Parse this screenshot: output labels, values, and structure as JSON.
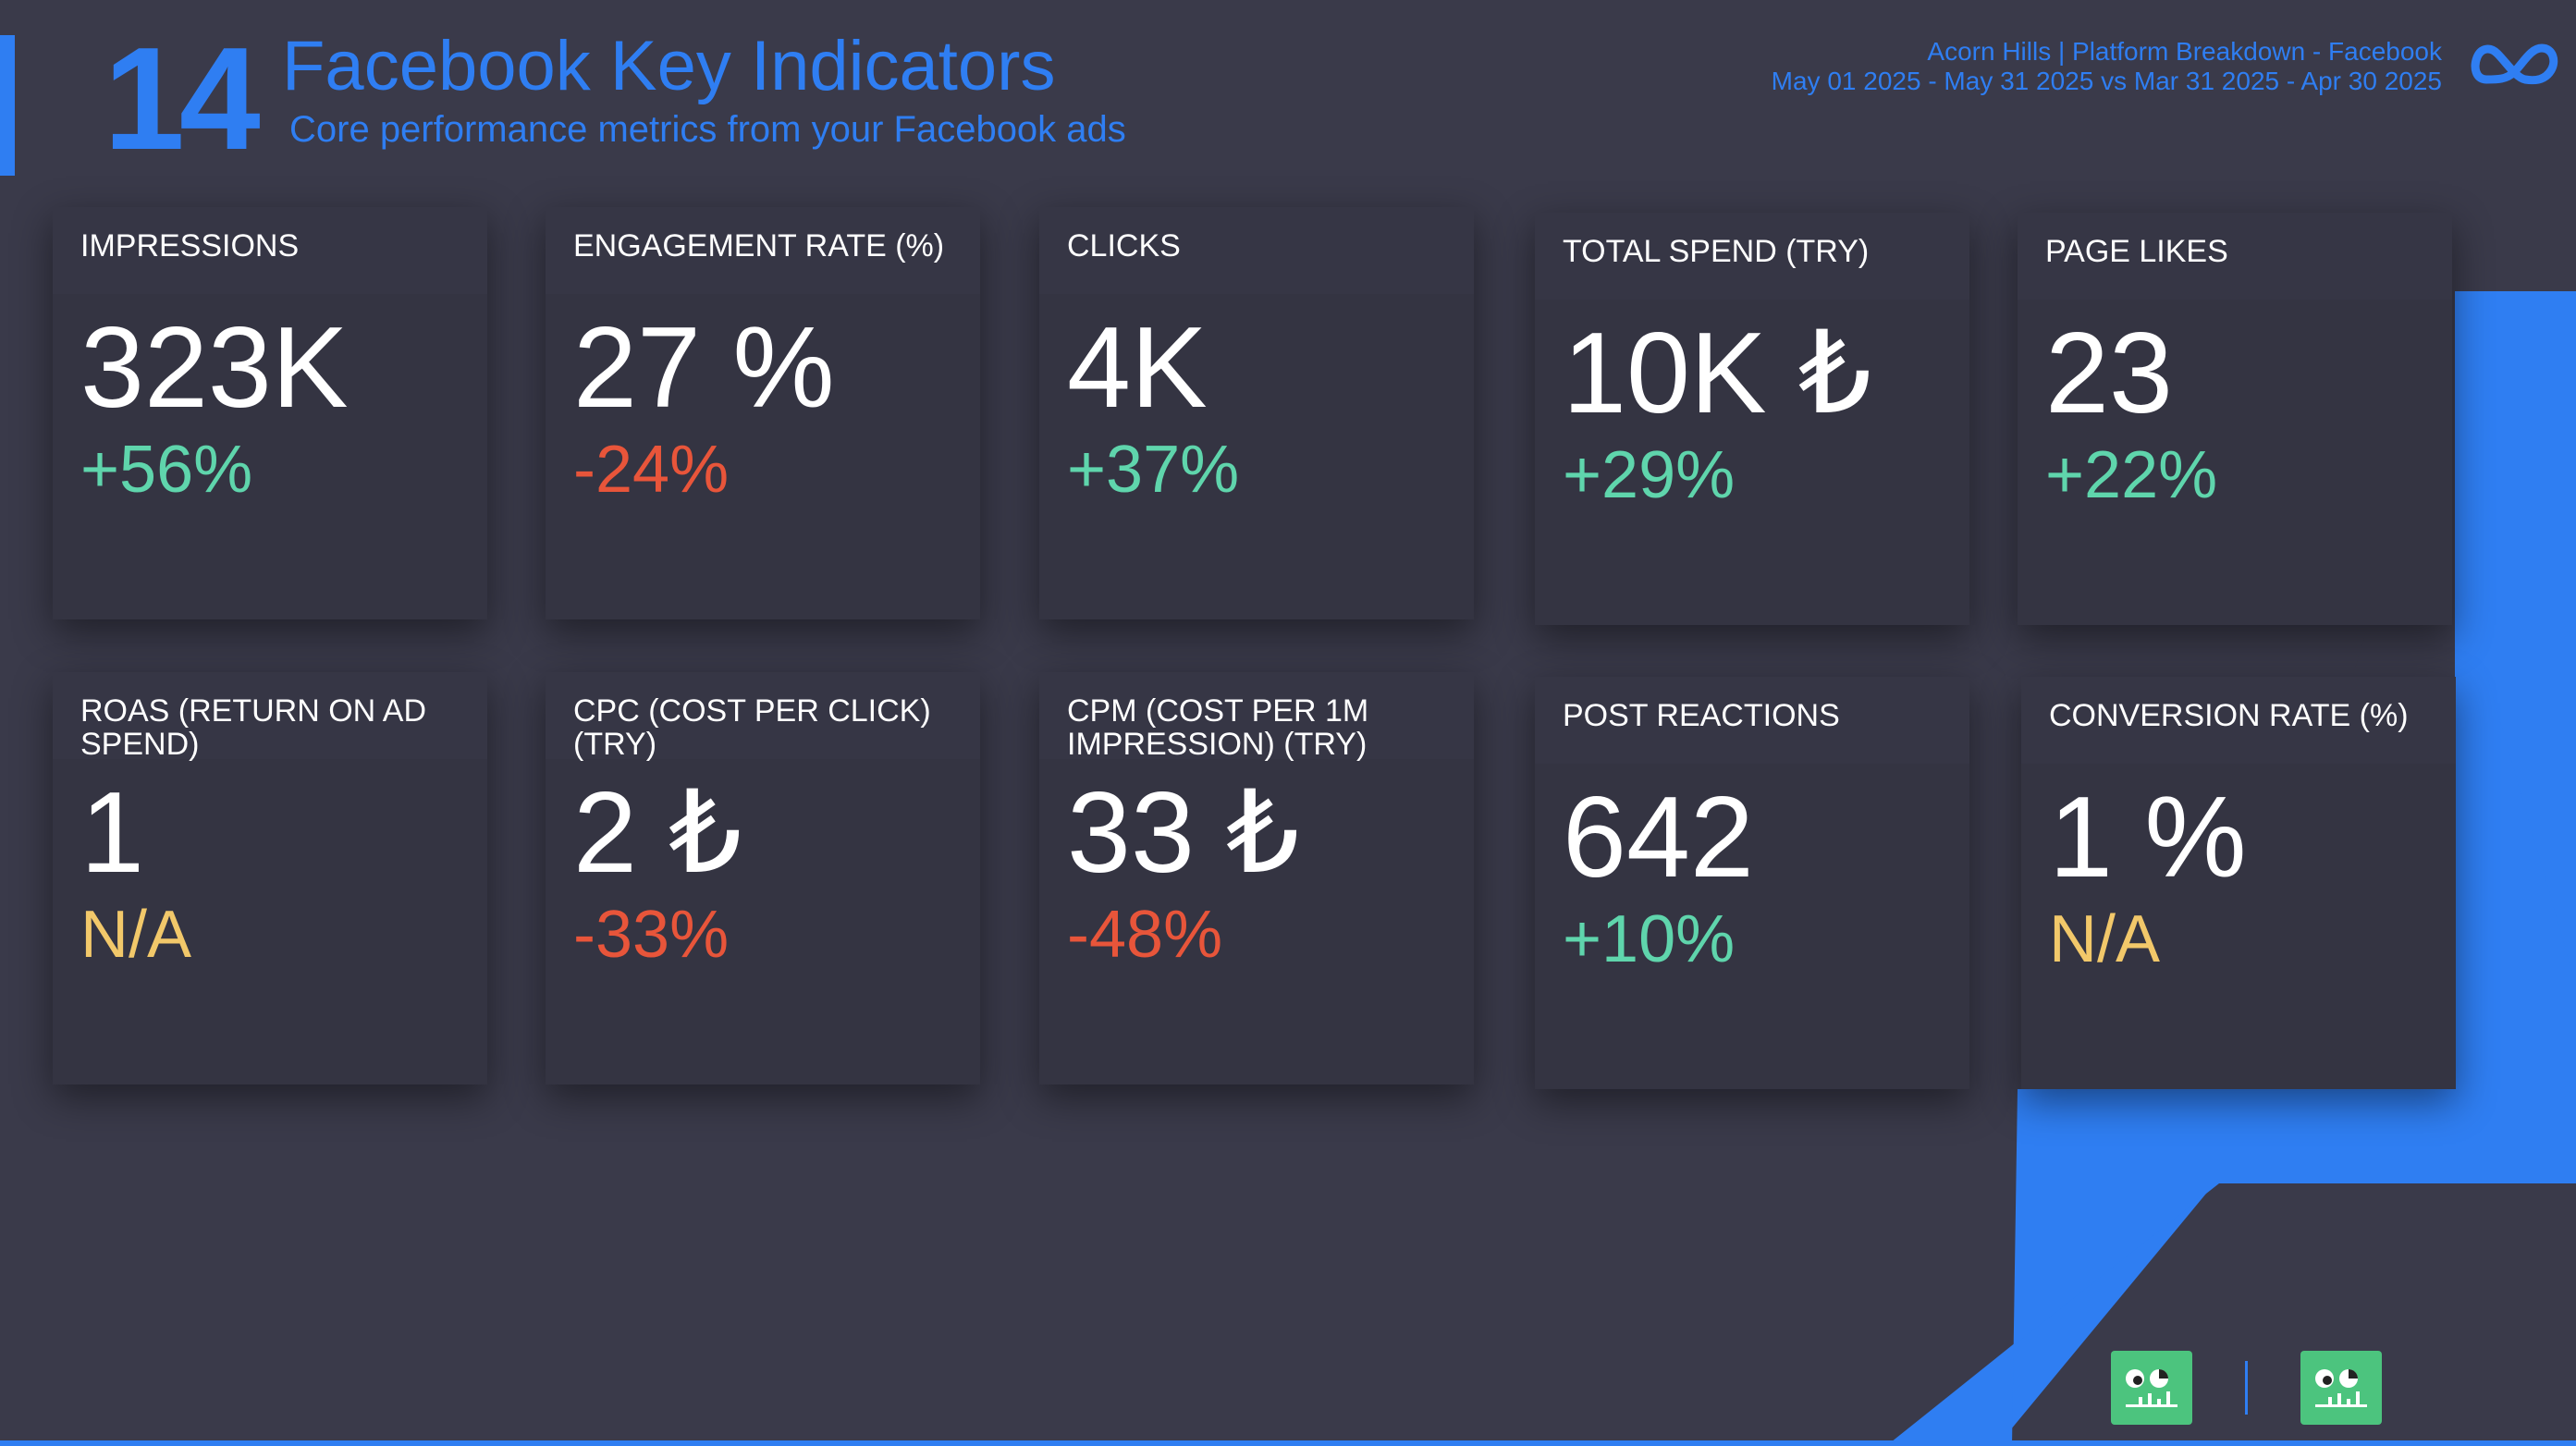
{
  "header": {
    "page_number": "14",
    "title": "Facebook Key Indicators",
    "subtitle": "Core performance metrics from your Facebook ads"
  },
  "report_meta": {
    "line1": "Acorn Hills | Platform Breakdown - Facebook",
    "line2": "May 01 2025 - May 31 2025 vs Mar 31 2025 - Apr 30 2025"
  },
  "logo": {
    "icon": "meta-infinity-logo-icon"
  },
  "colors": {
    "background": "#3a3a4a",
    "card": "#343442",
    "accent": "#2f7ef2",
    "positive": "#5fd5ac",
    "negative": "#e8553a",
    "neutral": "#f2c86a",
    "badge": "#4cc47e"
  },
  "kpis": [
    {
      "label": "IMPRESSIONS",
      "value": "323K",
      "change": "+56%",
      "trend": "positive"
    },
    {
      "label": "ENGAGEMENT RATE (%)",
      "value": "27 %",
      "change": "-24%",
      "trend": "negative"
    },
    {
      "label": "CLICKS",
      "value": "4K",
      "change": "+37%",
      "trend": "positive"
    },
    {
      "label": "TOTAL SPEND (TRY)",
      "value": "10K ₺",
      "change": "+29%",
      "trend": "positive"
    },
    {
      "label": "PAGE LIKES",
      "value": "23",
      "change": "+22%",
      "trend": "positive"
    },
    {
      "label": "ROAS (RETURN ON AD SPEND)",
      "value": "1",
      "change": "N/A",
      "trend": "neutral"
    },
    {
      "label": "CPC (COST PER CLICK) (TRY)",
      "value": "2 ₺",
      "change": "-33%",
      "trend": "negative"
    },
    {
      "label": "CPM (COST PER 1M IMPRESSION) (TRY)",
      "value": "33 ₺",
      "change": "-48%",
      "trend": "negative"
    },
    {
      "label": "POST REACTIONS",
      "value": "642",
      "change": "+10%",
      "trend": "positive"
    },
    {
      "label": "CONVERSION RATE (%)",
      "value": "1 %",
      "change": "N/A",
      "trend": "neutral"
    }
  ],
  "footer": {
    "badges": [
      "brand-mascot-icon",
      "brand-mascot-icon"
    ]
  }
}
